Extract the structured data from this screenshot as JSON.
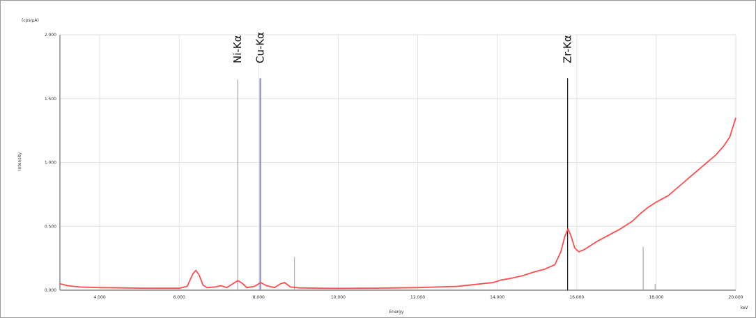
{
  "chart_data": {
    "type": "line",
    "units": "(cps/µA)",
    "xlabel": "Energy",
    "ylabel": "Intensity",
    "x_unit": "keV",
    "xlim": [
      3.0,
      20.0
    ],
    "ylim": [
      0.0,
      2.0
    ],
    "grid": true,
    "x_tick_labels": [
      "4.000",
      "6.000",
      "8.000",
      "10.000",
      "12.000",
      "14.000",
      "16.000",
      "18.000",
      "20.000"
    ],
    "x_tick_values": [
      4,
      6,
      8,
      10,
      12,
      14,
      16,
      18,
      20
    ],
    "y_tick_labels": [
      "0.000",
      "0.500",
      "1.000",
      "1.500",
      "2.000"
    ],
    "y_tick_values": [
      0,
      0.5,
      1.0,
      1.5,
      2.0
    ],
    "series": [
      {
        "color": "#ff4d4d",
        "points": [
          [
            3.0,
            0.05
          ],
          [
            3.2,
            0.035
          ],
          [
            3.5,
            0.025
          ],
          [
            3.8,
            0.022
          ],
          [
            4.0,
            0.02
          ],
          [
            4.5,
            0.018
          ],
          [
            5.0,
            0.016
          ],
          [
            5.5,
            0.015
          ],
          [
            6.0,
            0.015
          ],
          [
            6.2,
            0.03
          ],
          [
            6.35,
            0.13
          ],
          [
            6.42,
            0.155
          ],
          [
            6.5,
            0.12
          ],
          [
            6.6,
            0.04
          ],
          [
            6.7,
            0.02
          ],
          [
            6.9,
            0.025
          ],
          [
            7.05,
            0.035
          ],
          [
            7.2,
            0.02
          ],
          [
            7.35,
            0.05
          ],
          [
            7.48,
            0.075
          ],
          [
            7.6,
            0.05
          ],
          [
            7.7,
            0.02
          ],
          [
            7.9,
            0.03
          ],
          [
            8.05,
            0.06
          ],
          [
            8.2,
            0.035
          ],
          [
            8.4,
            0.02
          ],
          [
            8.55,
            0.05
          ],
          [
            8.65,
            0.06
          ],
          [
            8.8,
            0.025
          ],
          [
            9.0,
            0.018
          ],
          [
            9.5,
            0.015
          ],
          [
            10.0,
            0.014
          ],
          [
            10.5,
            0.015
          ],
          [
            11.0,
            0.016
          ],
          [
            11.5,
            0.018
          ],
          [
            12.0,
            0.02
          ],
          [
            12.5,
            0.025
          ],
          [
            13.0,
            0.03
          ],
          [
            13.3,
            0.04
          ],
          [
            13.6,
            0.05
          ],
          [
            13.9,
            0.06
          ],
          [
            14.1,
            0.08
          ],
          [
            14.3,
            0.09
          ],
          [
            14.6,
            0.11
          ],
          [
            14.9,
            0.14
          ],
          [
            15.2,
            0.165
          ],
          [
            15.45,
            0.2
          ],
          [
            15.6,
            0.3
          ],
          [
            15.7,
            0.42
          ],
          [
            15.78,
            0.48
          ],
          [
            15.85,
            0.43
          ],
          [
            15.95,
            0.33
          ],
          [
            16.05,
            0.3
          ],
          [
            16.2,
            0.32
          ],
          [
            16.5,
            0.38
          ],
          [
            16.8,
            0.43
          ],
          [
            17.1,
            0.48
          ],
          [
            17.4,
            0.54
          ],
          [
            17.6,
            0.6
          ],
          [
            17.8,
            0.65
          ],
          [
            18.0,
            0.69
          ],
          [
            18.3,
            0.74
          ],
          [
            18.6,
            0.82
          ],
          [
            18.9,
            0.9
          ],
          [
            19.2,
            0.98
          ],
          [
            19.5,
            1.06
          ],
          [
            19.7,
            1.13
          ],
          [
            19.85,
            1.2
          ],
          [
            20.0,
            1.35
          ]
        ]
      }
    ],
    "markers": [
      {
        "energy": 7.47,
        "height": 1.65,
        "color": "#999999",
        "width": 1
      },
      {
        "energy": 8.04,
        "height": 1.66,
        "color": "#8a8ad0",
        "width": 2.2
      },
      {
        "energy": 8.9,
        "height": 0.26,
        "color": "#9a9ad8",
        "width": 1
      },
      {
        "energy": 15.77,
        "height": 1.66,
        "color": "#111111",
        "width": 1.2
      },
      {
        "energy": 17.67,
        "height": 0.34,
        "color": "#999999",
        "width": 1
      },
      {
        "energy": 17.97,
        "height": 0.05,
        "color": "#999999",
        "width": 1
      }
    ],
    "peak_labels": [
      {
        "text": "Ni-Kα",
        "energy": 7.47
      },
      {
        "text": "Cu-Kα",
        "energy": 8.04
      },
      {
        "text": "Zr-Kα",
        "energy": 15.77
      }
    ]
  }
}
